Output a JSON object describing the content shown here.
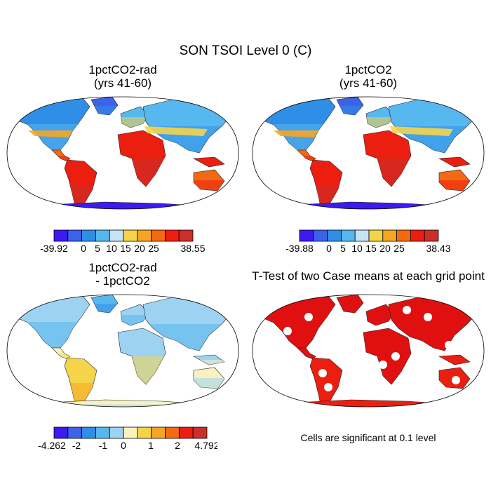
{
  "title": "SON TSOI Level 0 (C)",
  "panels": [
    {
      "id": "tl",
      "title_lines": [
        "1pctCO2-rad",
        "(yrs 41-60)"
      ],
      "colorbar": {
        "colors": [
          "#3a1cf0",
          "#3d62ea",
          "#2f8fe6",
          "#57b7ef",
          "#c6e4f6",
          "#f5d44a",
          "#f6a623",
          "#f36a12",
          "#ec1e10",
          "#c9302a"
        ],
        "labels": [
          "-39.92",
          "0",
          "5",
          "10",
          "15",
          "20",
          "25",
          "38.55"
        ]
      }
    },
    {
      "id": "tr",
      "title_lines": [
        "1pctCO2",
        "(yrs 41-60)"
      ],
      "colorbar": {
        "colors": [
          "#3a1cf0",
          "#3d62ea",
          "#2f8fe6",
          "#57b7ef",
          "#c6e4f6",
          "#f5d44a",
          "#f6a623",
          "#f36a12",
          "#ec1e10",
          "#c9302a"
        ],
        "labels": [
          "-39.88",
          "0",
          "5",
          "10",
          "15",
          "20",
          "25",
          "38.43"
        ]
      }
    },
    {
      "id": "bl",
      "title_lines": [
        "1pctCO2-rad",
        "- 1pctCO2"
      ],
      "colorbar": {
        "colors": [
          "#3a1cf0",
          "#3d62ea",
          "#2f8fe6",
          "#57b7ef",
          "#9dd3f2",
          "#f7f2c0",
          "#f5d44a",
          "#f6a623",
          "#f36a12",
          "#ec1e10",
          "#c9302a"
        ],
        "labels": [
          "-4.262",
          "-2",
          "-1",
          "0",
          "1",
          "2",
          "4.792"
        ]
      }
    },
    {
      "id": "br",
      "title_lines": [
        "T-Test of two Case means at each grid point"
      ],
      "note": "Cells are significant at 0.1 level"
    }
  ]
}
